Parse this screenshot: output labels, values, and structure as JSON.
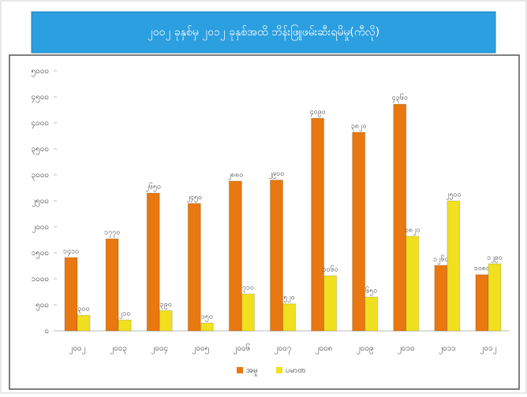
{
  "chart_data": {
    "type": "bar",
    "title": "၂၀၀၂ ခုနှစ်မှ ၂၀၁၂ ခုနှစ်အထိ ဘိန်းဖြူဖမ်းဆီးရမိမှု(ကီလို)",
    "categories": [
      "၂၀၀၂",
      "၂၀၀၃",
      "၂၀၀၄",
      "၂၀၀၅",
      "၂၀၀၆",
      "၂၀၀၇",
      "၂၀၀၈",
      "၂၀၀၉",
      "၂၀၁၀",
      "၂၀၁၁",
      "၂၀၁၂"
    ],
    "series": [
      {
        "name": "အမှု",
        "color": "#e8780f",
        "values": [
          1410,
          1770,
          2650,
          2450,
          2880,
          2900,
          4090,
          3820,
          4360,
          1260,
          1080
        ],
        "value_labels": [
          "၁၄၁၀",
          "၁၇၇၀",
          "၂၆၅၀",
          "၂၄၅၀",
          "၂၈၈၀",
          "၂၉၀၀",
          "၄၀၉၀",
          "၃၈၂၀",
          "၄၃၆၀",
          "၁၂၆၀",
          "၁၀၈၀"
        ]
      },
      {
        "name": "ပမာဏ",
        "color": "#f0e020",
        "values": [
          300,
          210,
          390,
          150,
          710,
          520,
          1060,
          650,
          1820,
          2500,
          1290
        ],
        "value_labels": [
          "၃၀၀",
          "၂၁၀",
          "၃၉၀",
          "၁၅၀",
          "၇၁၀",
          "၅၂၀",
          "၁၀၆၀",
          "၆၅၀",
          "၁၈၂၀",
          "၂၅၀၀",
          "၁၂၉၀"
        ]
      }
    ],
    "ylim": [
      0,
      5000
    ],
    "yticks": [
      {
        "value": 0,
        "label": "၀"
      },
      {
        "value": 500,
        "label": "၅၀၀"
      },
      {
        "value": 1000,
        "label": "၁၀၀၀"
      },
      {
        "value": 1500,
        "label": "၁၅၀၀"
      },
      {
        "value": 2000,
        "label": "၂၀၀၀"
      },
      {
        "value": 2500,
        "label": "၂၅၀၀"
      },
      {
        "value": 3000,
        "label": "၃၀၀၀"
      },
      {
        "value": 3500,
        "label": "၃၅၀၀"
      },
      {
        "value": 4000,
        "label": "၄၀၀၀"
      },
      {
        "value": 4500,
        "label": "၄၅၀၀"
      },
      {
        "value": 5000,
        "label": "၅၀၀၀"
      }
    ],
    "grid": false,
    "legend": "bottom"
  }
}
